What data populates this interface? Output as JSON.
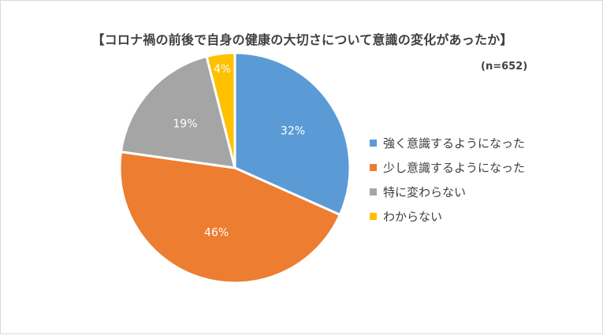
{
  "chart_data": {
    "type": "pie",
    "title": "【コロナ禍の前後で自身の健康の大切さについて意識の変化があったか】",
    "note": "(n=652)",
    "categories": [
      "強く意識するようになった",
      "少し意識するようになった",
      "特に変わらない",
      "わからない"
    ],
    "values": [
      32,
      46,
      19,
      4
    ],
    "labels": [
      "32%",
      "46%",
      "19%",
      "4%"
    ],
    "colors": [
      "#5b9bd5",
      "#ed7d31",
      "#a5a5a5",
      "#ffc000"
    ],
    "label_colors": [
      "#ffffff",
      "#ffffff",
      "#ffffff",
      "#ffffff"
    ],
    "legend_position": "right"
  }
}
